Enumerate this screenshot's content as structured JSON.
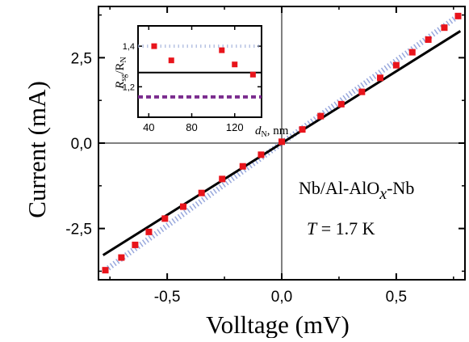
{
  "chart_data": [
    {
      "type": "scatter",
      "title": "",
      "xlabel": "Volltage (mV)",
      "ylabel": "Current (mA)",
      "xlim": [
        -0.8,
        0.8
      ],
      "ylim": [
        -4.0,
        4.0
      ],
      "x_ticks": [
        -0.5,
        0.0,
        0.5
      ],
      "x_tick_labels": [
        "-0,5",
        "0,0",
        "0,5"
      ],
      "y_ticks": [
        -2.5,
        0.0,
        2.5
      ],
      "y_tick_labels": [
        "-2,5",
        "0,0",
        "2,5"
      ],
      "grid": false,
      "annotations": {
        "sample": "Nb/Al-AlO",
        "sample_sub": "x",
        "sample_end": "-Nb",
        "temp_var": "T",
        "temp_value": " = 1.7 K"
      },
      "series": [
        {
          "style": "markers",
          "color": "#e8141b",
          "x": [
            -0.77,
            -0.7,
            -0.64,
            -0.58,
            -0.51,
            -0.43,
            -0.35,
            -0.26,
            -0.17,
            -0.09,
            0.0,
            0.09,
            0.17,
            0.26,
            0.35,
            0.43,
            0.5,
            0.57,
            0.64,
            0.71,
            0.77
          ],
          "y": [
            -3.72,
            -3.35,
            -2.98,
            -2.6,
            -2.21,
            -1.86,
            -1.46,
            -1.05,
            -0.68,
            -0.34,
            0.04,
            0.4,
            0.79,
            1.14,
            1.5,
            1.91,
            2.28,
            2.66,
            3.03,
            3.38,
            3.72
          ]
        },
        {
          "style": "dotted",
          "color": "#5570c8",
          "x": [
            -0.77,
            0.77
          ],
          "y": [
            -3.72,
            3.72
          ]
        },
        {
          "style": "line",
          "color": "#000000",
          "x": [
            -0.78,
            0.78
          ],
          "y": [
            -3.28,
            3.28
          ]
        }
      ]
    },
    {
      "type": "scatter",
      "title": "",
      "xlabel_var": "d",
      "xlabel_sub": "N",
      "xlabel_unit": ", nm",
      "ylabel_var": "R",
      "ylabel_sub1": "sg",
      "ylabel_mid": "/R",
      "ylabel_sub2": "N",
      "xlim": [
        30,
        145
      ],
      "ylim": [
        1.05,
        1.5
      ],
      "x_ticks": [
        40,
        80,
        120
      ],
      "x_tick_labels": [
        "40",
        "80",
        "120"
      ],
      "y_ticks": [
        1.2,
        1.4
      ],
      "y_tick_labels": [
        "1,2",
        "1,4"
      ],
      "grid": false,
      "series": [
        {
          "style": "markers",
          "color": "#e8141b",
          "x": [
            45,
            61,
            108,
            120,
            137
          ],
          "y": [
            1.4,
            1.33,
            1.38,
            1.31,
            1.26
          ]
        },
        {
          "style": "line",
          "color": "#000000",
          "x": [
            30,
            145
          ],
          "y": [
            1.27,
            1.27
          ]
        },
        {
          "style": "dashed",
          "color": "#7b2d8e",
          "x": [
            30,
            145
          ],
          "y": [
            1.15,
            1.15
          ]
        },
        {
          "style": "dotted",
          "color": "#9aaad8",
          "x": [
            30,
            145
          ],
          "y": [
            1.4,
            1.4
          ]
        }
      ]
    }
  ]
}
